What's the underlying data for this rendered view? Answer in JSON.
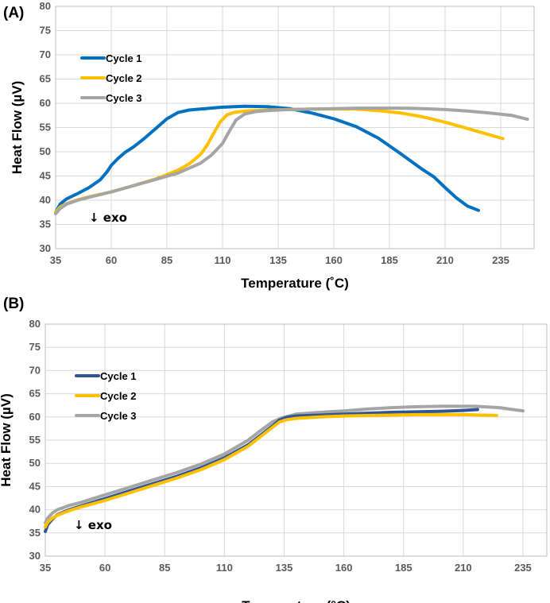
{
  "chart_data": [
    {
      "panel_label": "(A)",
      "type": "line",
      "xlabel": "Temperature (˚C)",
      "ylabel": "Heat Flow (µV)",
      "xlim": [
        35,
        250
      ],
      "ylim": [
        30,
        80
      ],
      "xticks": [
        35,
        60,
        85,
        110,
        135,
        160,
        185,
        210,
        235
      ],
      "yticks": [
        30,
        35,
        40,
        45,
        50,
        55,
        60,
        65,
        70,
        75,
        80
      ],
      "grid": true,
      "legend_position": "upper-left",
      "annotation": "↓ exo",
      "series": [
        {
          "name": "Cycle 1",
          "color": "#0070C0",
          "x": [
            35,
            37,
            40,
            45,
            50,
            55,
            58,
            60,
            63,
            66,
            70,
            75,
            80,
            85,
            90,
            95,
            100,
            110,
            120,
            130,
            140,
            150,
            160,
            170,
            180,
            190,
            200,
            205,
            210,
            215,
            220,
            225
          ],
          "y": [
            37.5,
            39.2,
            40.3,
            41.4,
            42.6,
            44.2,
            45.8,
            47.2,
            48.6,
            49.8,
            51.0,
            52.8,
            54.8,
            56.8,
            58.1,
            58.6,
            58.8,
            59.2,
            59.4,
            59.3,
            58.9,
            58.0,
            56.8,
            55.2,
            52.8,
            49.6,
            46.3,
            44.8,
            42.6,
            40.5,
            38.8,
            37.9
          ]
        },
        {
          "name": "Cycle 2",
          "color": "#FFC000",
          "x": [
            35,
            37,
            40,
            45,
            50,
            60,
            70,
            80,
            90,
            95,
            100,
            103,
            106,
            109,
            112,
            115,
            120,
            130,
            140,
            150,
            160,
            170,
            180,
            190,
            200,
            210,
            220,
            230,
            236
          ],
          "y": [
            37.5,
            38.6,
            39.3,
            40.1,
            40.7,
            41.7,
            43.0,
            44.4,
            46.2,
            47.5,
            49.4,
            51.3,
            53.8,
            56.2,
            57.6,
            58.1,
            58.4,
            58.6,
            58.7,
            58.8,
            58.8,
            58.8,
            58.5,
            58.0,
            57.2,
            56.1,
            54.8,
            53.5,
            52.7
          ]
        },
        {
          "name": "Cycle 3",
          "color": "#A5A5A5",
          "x": [
            35,
            37,
            40,
            45,
            50,
            60,
            70,
            80,
            90,
            100,
            105,
            110,
            113,
            116,
            120,
            125,
            130,
            140,
            150,
            160,
            170,
            180,
            190,
            200,
            210,
            220,
            230,
            240,
            247
          ],
          "y": [
            37.2,
            38.3,
            39.2,
            40.0,
            40.6,
            41.7,
            43.0,
            44.3,
            45.6,
            47.6,
            49.3,
            51.7,
            54.2,
            56.5,
            57.8,
            58.3,
            58.5,
            58.7,
            58.8,
            58.9,
            59.0,
            59.0,
            59.0,
            58.9,
            58.7,
            58.4,
            58.0,
            57.5,
            56.7
          ]
        }
      ]
    },
    {
      "panel_label": "(B)",
      "type": "line",
      "xlabel": "Temperature (°C)",
      "ylabel": "Heat Flow (µV)",
      "xlim": [
        35,
        245
      ],
      "ylim": [
        30,
        80
      ],
      "xticks": [
        35,
        60,
        85,
        110,
        135,
        160,
        185,
        210,
        235
      ],
      "yticks": [
        30,
        35,
        40,
        45,
        50,
        55,
        60,
        65,
        70,
        75,
        80
      ],
      "grid": true,
      "legend_position": "upper-left",
      "annotation": "↓ exo",
      "series": [
        {
          "name": "Cycle 1",
          "color": "#2F5597",
          "x": [
            35,
            36,
            38,
            40,
            45,
            50,
            60,
            70,
            80,
            90,
            100,
            110,
            120,
            125,
            130,
            133,
            136,
            140,
            150,
            160,
            170,
            180,
            190,
            200,
            210,
            216
          ],
          "y": [
            35.3,
            36.8,
            38.0,
            38.9,
            40.0,
            40.8,
            42.4,
            44.0,
            45.6,
            47.2,
            49.0,
            51.2,
            54.0,
            56.0,
            58.0,
            59.3,
            59.9,
            60.2,
            60.4,
            60.6,
            60.8,
            61.0,
            61.1,
            61.2,
            61.4,
            61.6
          ]
        },
        {
          "name": "Cycle 2",
          "color": "#FFC000",
          "x": [
            35,
            36,
            38,
            40,
            45,
            50,
            60,
            70,
            80,
            90,
            100,
            110,
            120,
            125,
            130,
            133,
            136,
            140,
            150,
            160,
            170,
            180,
            190,
            200,
            210,
            224
          ],
          "y": [
            36.3,
            37.3,
            38.2,
            38.8,
            39.8,
            40.6,
            42.0,
            43.6,
            45.2,
            46.8,
            48.6,
            50.8,
            53.7,
            55.7,
            57.7,
            58.9,
            59.4,
            59.7,
            60.0,
            60.2,
            60.3,
            60.4,
            60.5,
            60.5,
            60.5,
            60.3
          ]
        },
        {
          "name": "Cycle 3",
          "color": "#A5A5A5",
          "x": [
            35,
            36,
            38,
            40,
            45,
            50,
            60,
            70,
            80,
            90,
            100,
            110,
            120,
            125,
            130,
            134,
            140,
            150,
            160,
            170,
            180,
            190,
            200,
            210,
            215,
            225,
            235
          ],
          "y": [
            37.2,
            38.2,
            39.3,
            40.0,
            40.9,
            41.6,
            43.2,
            44.8,
            46.4,
            48.0,
            49.8,
            52.0,
            55.0,
            57.0,
            58.9,
            59.8,
            60.6,
            61.0,
            61.3,
            61.7,
            62.0,
            62.2,
            62.3,
            62.3,
            62.3,
            62.0,
            61.3
          ]
        }
      ]
    }
  ]
}
